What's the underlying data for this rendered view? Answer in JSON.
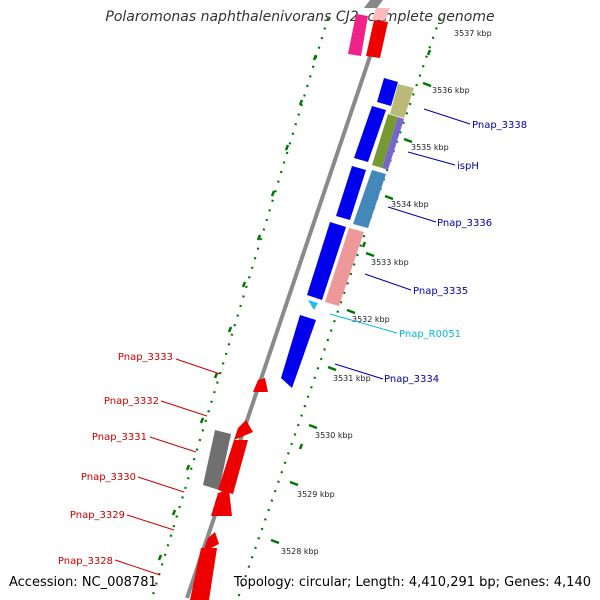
{
  "title": "Polaromonas naphthalenivorans CJ2, complete genome",
  "accession_label": "Accession: NC_008781",
  "summary_label": "Topology: circular; Length: 4,410,291 bp; Genes: 4,140",
  "colors": {
    "backbone": "#8c8c8c",
    "forward": "#0000ee",
    "reverse": "#ee0000",
    "tick": "#007700",
    "label_forward": "#0000aa",
    "label_reverse": "#cc0000",
    "label_rna": "#00bbdd"
  },
  "ticks": [
    "3537 kbp",
    "3536 kbp",
    "3535 kbp",
    "3534 kbp",
    "3533 kbp",
    "3532 kbp",
    "3531 kbp",
    "3530 kbp",
    "3529 kbp",
    "3528 kbp"
  ],
  "gene_labels": {
    "right": [
      "Pnap_3338",
      "ispH",
      "Pnap_3336",
      "Pnap_3335",
      "Pnap_R0051",
      "Pnap_3334"
    ],
    "left": [
      "Pnap_3333",
      "Pnap_3332",
      "Pnap_3331",
      "Pnap_3330",
      "Pnap_3329",
      "Pnap_3328"
    ]
  }
}
